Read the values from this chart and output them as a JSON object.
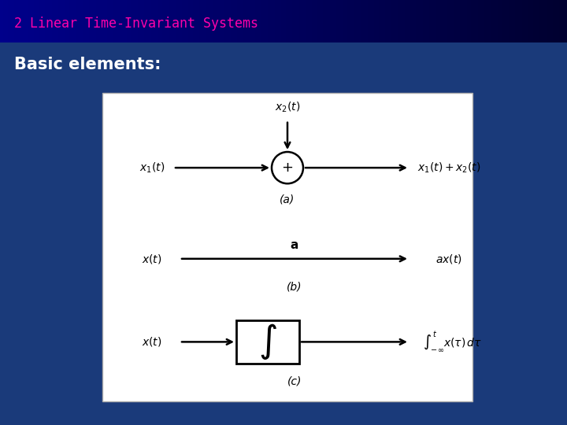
{
  "title": "2 Linear Time-Invariant Systems",
  "subtitle": "Basic elements:",
  "title_color": "#FF00AA",
  "separator_color": "#00FFFF",
  "bg_color": "#1a3a7a",
  "diagram_text_color": "#000000",
  "label_a": "(a)",
  "label_b": "(b)",
  "label_c": "(c)",
  "title_fontsize": 12,
  "subtitle_fontsize": 15
}
